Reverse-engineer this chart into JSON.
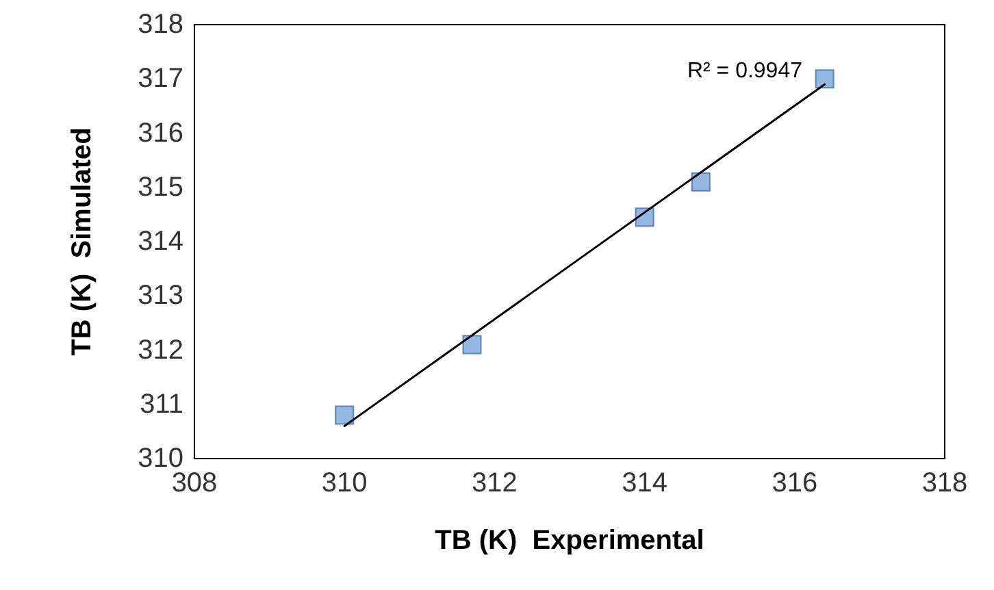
{
  "chart_data": {
    "type": "scatter",
    "xlabel": "TB (K)  Experimental",
    "ylabel": "TB (K)  Simulated",
    "x": [
      310.0,
      311.7,
      314.0,
      314.75,
      316.4
    ],
    "series": [
      {
        "color": "#7aa6dc",
        "marker": "square",
        "values": [
          310.8,
          312.1,
          314.45,
          315.1,
          317.0
        ]
      },
      {
        "type": "line",
        "color": "#000000",
        "marker": "none",
        "line_style": "solid",
        "x": [
          310.0,
          316.4
        ],
        "values": [
          310.6,
          316.9
        ]
      }
    ],
    "xlim": [
      308,
      318
    ],
    "xticks": [
      308,
      310,
      312,
      314,
      316,
      318
    ],
    "ylim": [
      310,
      318
    ],
    "yticks": [
      310,
      311,
      312,
      313,
      314,
      315,
      316,
      317,
      318
    ],
    "grid": false,
    "annotations": [
      "R² = 0.9947"
    ]
  }
}
